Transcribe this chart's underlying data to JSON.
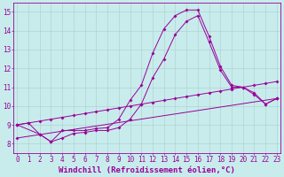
{
  "background_color": "#c8ecec",
  "line_color": "#990099",
  "grid_color": "#aacccc",
  "xlabel": "Windchill (Refroidissement éolien,°C)",
  "yticks": [
    8,
    9,
    10,
    11,
    12,
    13,
    14,
    15
  ],
  "xticks": [
    0,
    1,
    2,
    3,
    4,
    5,
    6,
    7,
    8,
    9,
    10,
    11,
    12,
    13,
    14,
    15,
    16,
    17,
    18,
    19,
    20,
    21,
    22,
    23
  ],
  "xlim": [
    -0.3,
    23.3
  ],
  "ylim": [
    7.5,
    15.5
  ],
  "tick_fontsize": 5.5,
  "xlabel_fontsize": 6.5,
  "line_width": 0.7,
  "marker_size": 2.0,
  "line1_x": [
    0,
    1,
    2,
    3,
    4,
    5,
    6,
    7,
    8,
    9,
    10,
    11,
    12,
    13,
    14,
    15,
    16,
    17,
    18,
    19,
    20,
    21,
    22,
    23
  ],
  "line1_y": [
    9.0,
    9.1,
    9.2,
    9.3,
    9.4,
    9.5,
    9.6,
    9.7,
    9.8,
    9.9,
    10.0,
    10.1,
    10.2,
    10.3,
    10.4,
    10.5,
    10.6,
    10.7,
    10.8,
    10.9,
    11.0,
    11.1,
    11.2,
    11.3
  ],
  "line2_x": [
    0,
    1,
    2,
    3,
    4,
    5,
    6,
    7,
    8,
    9,
    10,
    11,
    12,
    13,
    14,
    15,
    16,
    17,
    18,
    19,
    20,
    21,
    22,
    23
  ],
  "line2_y": [
    9.0,
    9.1,
    8.5,
    8.1,
    8.7,
    8.7,
    8.7,
    8.8,
    8.85,
    9.3,
    10.3,
    11.1,
    12.8,
    14.1,
    14.8,
    15.1,
    15.1,
    13.7,
    12.1,
    11.1,
    11.0,
    10.7,
    10.1,
    10.4
  ],
  "line3_x": [
    0,
    2,
    3,
    4,
    5,
    6,
    7,
    8,
    9,
    10,
    11,
    12,
    13,
    14,
    15,
    16,
    17,
    18,
    19,
    20,
    21,
    22,
    23
  ],
  "line3_y": [
    9.0,
    8.5,
    8.1,
    8.3,
    8.55,
    8.6,
    8.7,
    8.7,
    8.85,
    9.3,
    10.1,
    11.5,
    12.5,
    13.8,
    14.5,
    14.8,
    13.4,
    11.9,
    11.0,
    11.0,
    10.6,
    10.1,
    10.4
  ],
  "line4_x": [
    0,
    23
  ],
  "line4_y": [
    8.3,
    10.4
  ]
}
